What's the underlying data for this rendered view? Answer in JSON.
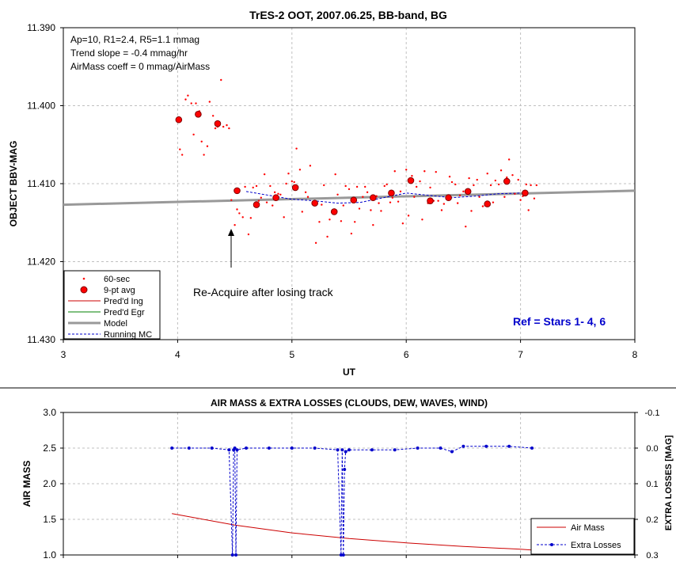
{
  "top_chart": {
    "title": "TrES-2 OOT, 2007.06.25, BB-band, BG",
    "xlabel": "UT",
    "ylabel": "OBJECT BBV-MAG",
    "x_ticks": [
      "3",
      "4",
      "5",
      "6",
      "7",
      "8"
    ],
    "y_ticks": [
      "11.390",
      "11.400",
      "11.410",
      "11.420",
      "11.430"
    ],
    "info_lines": [
      "Ap=10, R1=2.4, R5=1.1 mmag",
      "Trend slope = -0.4 mmag/hr",
      "AirMass coeff = 0 mmag/AirMass"
    ],
    "annotation": "Re-Acquire after losing track",
    "ref_text": "Ref = Stars 1- 4, 6",
    "legend": [
      "60-sec",
      "9-pt avg",
      "Pred'd Ing",
      "Pred'd Egr",
      "Model",
      "Running MC"
    ]
  },
  "bottom_chart": {
    "title": "AIR MASS & EXTRA LOSSES (CLOUDS, DEW, WAVES, WIND)",
    "ylabel_left": "AIR MASS",
    "ylabel_right": "EXTRA LOSSES [MAG]",
    "y_ticks_left": [
      "3.0",
      "2.5",
      "2.0",
      "1.5",
      "1.0"
    ],
    "y_ticks_right": [
      "-0.1",
      "0.0",
      "0.1",
      "0.2",
      "0.3"
    ],
    "legend": [
      "Air Mass",
      "Extra Losses"
    ]
  },
  "colors": {
    "points": "#ff0000",
    "model": "#999999",
    "running_mc": "#0000cc",
    "ref": "#0000cc",
    "air_mass": "#cc0000",
    "extra_losses": "#0000cc"
  },
  "chart_data": [
    {
      "type": "scatter",
      "title": "TrES-2 OOT, 2007.06.25, BB-band, BG",
      "xlabel": "UT",
      "ylabel": "OBJECT BBV-MAG",
      "xlim": [
        3,
        8
      ],
      "ylim": [
        11.39,
        11.43
      ],
      "y_inverted": true,
      "grid": true,
      "legend_position": "bottom-left",
      "series": [
        {
          "name": "9-pt avg",
          "x": [
            4.01,
            4.18,
            4.35,
            4.52,
            4.69,
            4.86,
            5.03,
            5.2,
            5.37,
            5.54,
            5.71,
            5.87,
            6.04,
            6.21,
            6.37,
            6.54,
            6.71,
            6.88,
            7.04
          ],
          "y": [
            11.4018,
            11.4011,
            11.4023,
            11.4109,
            11.4127,
            11.4118,
            11.4105,
            11.4125,
            11.4136,
            11.4121,
            11.4118,
            11.4112,
            11.4096,
            11.4122,
            11.4118,
            11.411,
            11.4126,
            11.4097,
            11.4112
          ]
        },
        {
          "name": "Model",
          "x": [
            3,
            8
          ],
          "y": [
            11.4127,
            11.4109
          ]
        },
        {
          "name": "Running MC",
          "x": [
            4.6,
            4.8,
            5.0,
            5.2,
            5.4,
            5.6,
            5.8,
            6.0,
            6.2,
            6.4,
            6.6,
            6.8,
            7.0
          ],
          "y": [
            11.411,
            11.4115,
            11.412,
            11.4122,
            11.4125,
            11.4124,
            11.4118,
            11.4112,
            11.4115,
            11.4118,
            11.4116,
            11.4113,
            11.4112
          ]
        },
        {
          "name": "60-sec",
          "x": [
            4.02,
            4.04,
            4.07,
            4.09,
            4.12,
            4.14,
            4.16,
            4.19,
            4.21,
            4.23,
            4.26,
            4.28,
            4.31,
            4.33,
            4.35,
            4.38,
            4.4,
            4.43,
            4.45,
            4.47,
            4.5,
            4.52,
            4.54,
            4.57,
            4.59,
            4.62,
            4.64,
            4.66,
            4.69,
            4.71,
            4.73,
            4.76,
            4.78,
            4.81,
            4.83,
            4.85,
            4.88,
            4.9,
            4.93,
            4.95,
            4.97,
            5.0,
            5.02,
            5.04,
            5.07,
            5.09,
            5.12,
            5.14,
            5.16,
            5.19,
            5.21,
            5.24,
            5.26,
            5.28,
            5.31,
            5.33,
            5.35,
            5.38,
            5.4,
            5.43,
            5.45,
            5.47,
            5.5,
            5.52,
            5.55,
            5.57,
            5.59,
            5.62,
            5.64,
            5.66,
            5.69,
            5.71,
            5.74,
            5.76,
            5.78,
            5.81,
            5.83,
            5.86,
            5.88,
            5.9,
            5.93,
            5.95,
            5.97,
            6.0,
            6.02,
            6.05,
            6.07,
            6.09,
            6.12,
            6.14,
            6.16,
            6.19,
            6.21,
            6.24,
            6.26,
            6.28,
            6.31,
            6.33,
            6.36,
            6.38,
            6.4,
            6.43,
            6.45,
            6.47,
            6.5,
            6.52,
            6.55,
            6.57,
            6.59,
            6.62,
            6.64,
            6.67,
            6.69,
            6.71,
            6.74,
            6.76,
            6.78,
            6.81,
            6.83,
            6.86,
            6.88,
            6.9,
            6.93,
            6.95,
            6.98,
            7.0,
            7.02,
            7.05,
            7.07,
            7.09,
            7.12,
            7.14
          ],
          "y": [
            11.4056,
            11.4063,
            11.3992,
            11.3987,
            11.3997,
            11.4037,
            11.3997,
            11.4007,
            11.4046,
            11.4063,
            11.4052,
            11.3995,
            11.4013,
            11.4029,
            11.4027,
            11.3967,
            11.4027,
            11.4025,
            11.4029,
            11.4121,
            11.4153,
            11.4133,
            11.4138,
            11.4143,
            11.4104,
            11.4165,
            11.4144,
            11.4105,
            11.4103,
            11.4122,
            11.4118,
            11.4088,
            11.4124,
            11.4103,
            11.4128,
            11.4111,
            11.4113,
            11.4114,
            11.4143,
            11.41,
            11.4087,
            11.4097,
            11.4098,
            11.4055,
            11.4082,
            11.4136,
            11.4111,
            11.4117,
            11.4077,
            11.4127,
            11.4176,
            11.4149,
            11.4127,
            11.4102,
            11.4168,
            11.4146,
            11.4137,
            11.4088,
            11.4114,
            11.4148,
            11.4128,
            11.4103,
            11.4107,
            11.4164,
            11.4149,
            11.4104,
            11.4132,
            11.4117,
            11.4104,
            11.4111,
            11.4134,
            11.4153,
            11.4116,
            11.4125,
            11.4135,
            11.4103,
            11.4101,
            11.4124,
            11.4118,
            11.4084,
            11.4123,
            11.411,
            11.4151,
            11.4082,
            11.4141,
            11.409,
            11.4117,
            11.4104,
            11.4097,
            11.4146,
            11.4084,
            11.4125,
            11.4105,
            11.4122,
            11.4085,
            11.4122,
            11.4134,
            11.4126,
            11.4118,
            11.4091,
            11.4098,
            11.4101,
            11.4125,
            11.4115,
            11.411,
            11.4155,
            11.4093,
            11.4135,
            11.4102,
            11.4095,
            11.4117,
            11.4129,
            11.4128,
            11.4087,
            11.4102,
            11.4124,
            11.4096,
            11.4101,
            11.4083,
            11.4117,
            11.4092,
            11.4069,
            11.4089,
            11.4113,
            11.4095,
            11.4121,
            11.4116,
            11.4101,
            11.4134,
            11.4102,
            11.4119,
            11.4102
          ]
        }
      ]
    },
    {
      "type": "line",
      "title": "AIR MASS & EXTRA LOSSES (CLOUDS, DEW, WAVES, WIND)",
      "ylabel": "AIR MASS",
      "y2label": "EXTRA LOSSES [MAG]",
      "xlim": [
        3,
        8
      ],
      "ylim": [
        1.0,
        3.0
      ],
      "y2lim": [
        -0.1,
        0.3
      ],
      "y2_inverted": true,
      "grid": true,
      "legend_position": "bottom-right",
      "series": [
        {
          "name": "Air Mass",
          "x": [
            3.95,
            4.5,
            5.0,
            5.5,
            6.0,
            6.5,
            7.0,
            7.1
          ],
          "y": [
            1.58,
            1.42,
            1.31,
            1.23,
            1.17,
            1.12,
            1.08,
            1.07
          ]
        },
        {
          "name": "Extra Losses",
          "x": [
            3.95,
            4.1,
            4.3,
            4.45,
            4.48,
            4.49,
            4.5,
            4.51,
            4.52,
            4.6,
            4.8,
            5.0,
            5.2,
            5.4,
            5.43,
            5.44,
            5.45,
            5.46,
            5.47,
            5.5,
            5.7,
            5.9,
            6.1,
            6.3,
            6.4,
            6.5,
            6.7,
            6.9,
            7.1
          ],
          "y": [
            0.0,
            0.0,
            0.0,
            0.005,
            0.3,
            0.005,
            0.0,
            0.3,
            0.005,
            0.0,
            0.0,
            0.0,
            0.0,
            0.005,
            0.3,
            0.005,
            0.3,
            0.06,
            0.01,
            0.005,
            0.005,
            0.005,
            0.0,
            0.0,
            0.01,
            -0.005,
            -0.005,
            -0.005,
            0.0
          ]
        }
      ]
    }
  ]
}
